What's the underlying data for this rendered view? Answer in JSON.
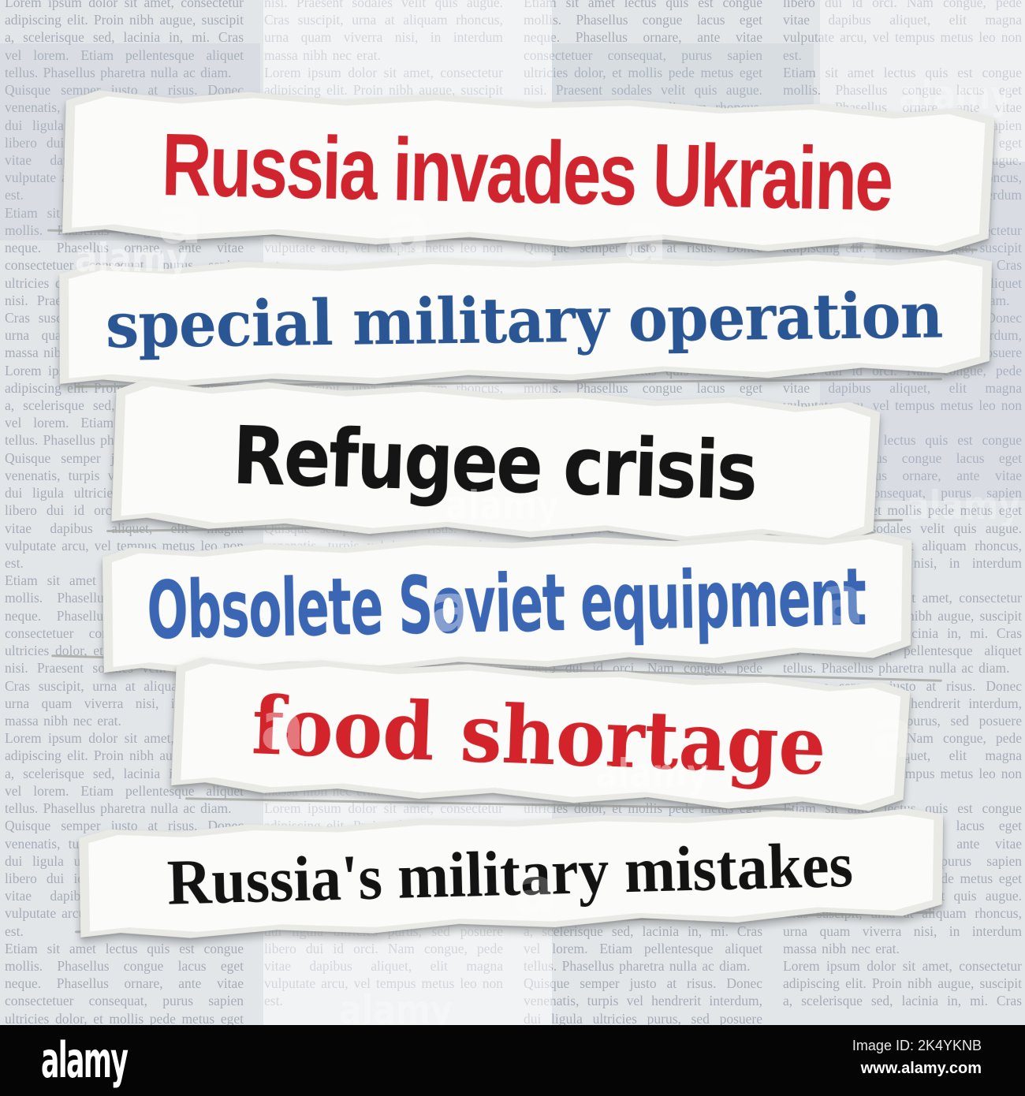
{
  "background": {
    "paragraphs": [
      "Lorem ipsum dolor sit amet, consectetur adipiscing elit. Proin nibh augue, suscipit a, scelerisque sed, lacinia in, mi. Cras vel lorem. Etiam pellentesque aliquet tellus. Phasellus pharetra nulla ac diam.",
      "Quisque semper justo at risus. Donec venenatis, turpis vel hendrerit interdum, dui ligula ultricies purus, sed posuere libero dui id orci. Nam congue, pede vitae dapibus aliquet, elit magna vulputate arcu, vel tempus metus leo non est.",
      "Etiam sit amet lectus quis est congue mollis. Phasellus congue lacus eget neque. Phasellus ornare, ante vitae consectetuer consequat, purus sapien ultricies dolor, et mollis pede metus eget nisi. Praesent sodales velit quis augue. Cras suscipit, urna at aliquam rhoncus, urna quam viverra nisi, in interdum massa nibh nec erat."
    ]
  },
  "clippings": [
    {
      "text": "Russia invades Ukraine",
      "color": "#d0242e"
    },
    {
      "text": "special military operation",
      "color": "#2b5694"
    },
    {
      "text": "Refugee crisis",
      "color": "#151515"
    },
    {
      "text": "Obsolete Soviet equipment",
      "color": "#3a66b4"
    },
    {
      "text": "food shortage",
      "color": "#d2242a"
    },
    {
      "text": "Russia's military mistakes",
      "color": "#131313"
    }
  ],
  "watermark": {
    "text": "alamy",
    "glyph": "a"
  },
  "footer": {
    "logo": "alamy",
    "image_id": "Image ID: 2K4YKNB",
    "url": "www.alamy.com"
  }
}
